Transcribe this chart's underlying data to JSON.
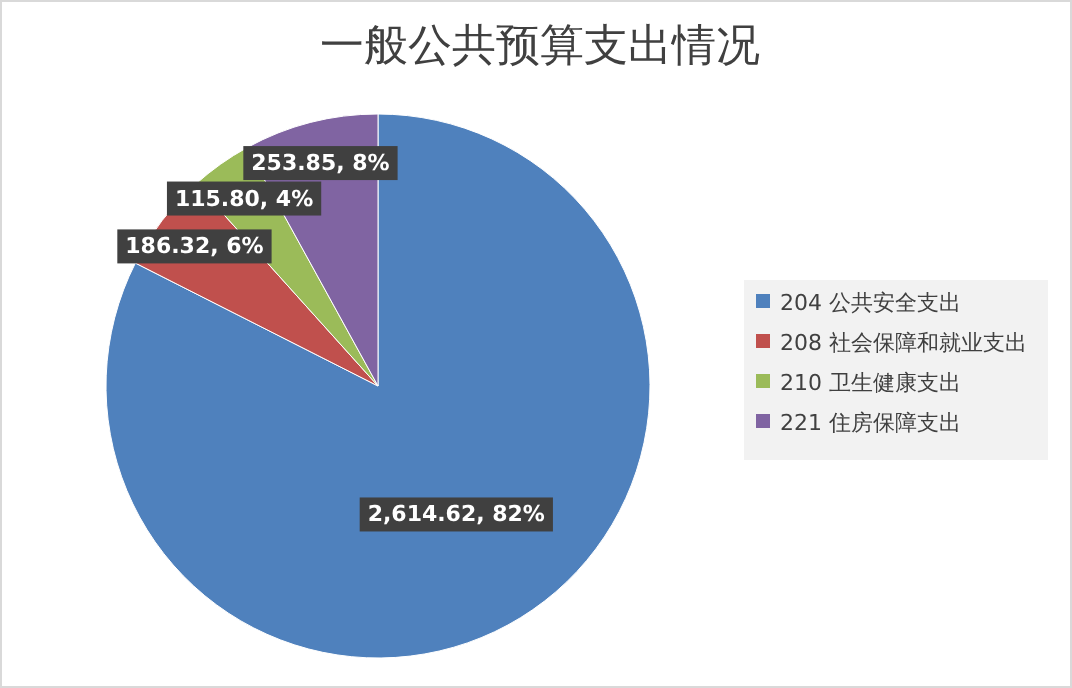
{
  "chart_data": {
    "type": "pie",
    "title": "一般公共预算支出情况",
    "categories": [
      "204 公共安全支出",
      "208 社会保障和就业支出",
      "210 卫生健康支出",
      "221 住房保障支出"
    ],
    "values": [
      2614.62,
      186.32,
      115.8,
      253.85
    ],
    "colors": [
      "#4f81bd",
      "#c0504d",
      "#9bbb59",
      "#8064a2"
    ],
    "value_labels": [
      "2,614.62, 82%",
      "186.32, 6%",
      "115.80, 4%",
      "253.85, 8%"
    ],
    "legend": "right"
  }
}
